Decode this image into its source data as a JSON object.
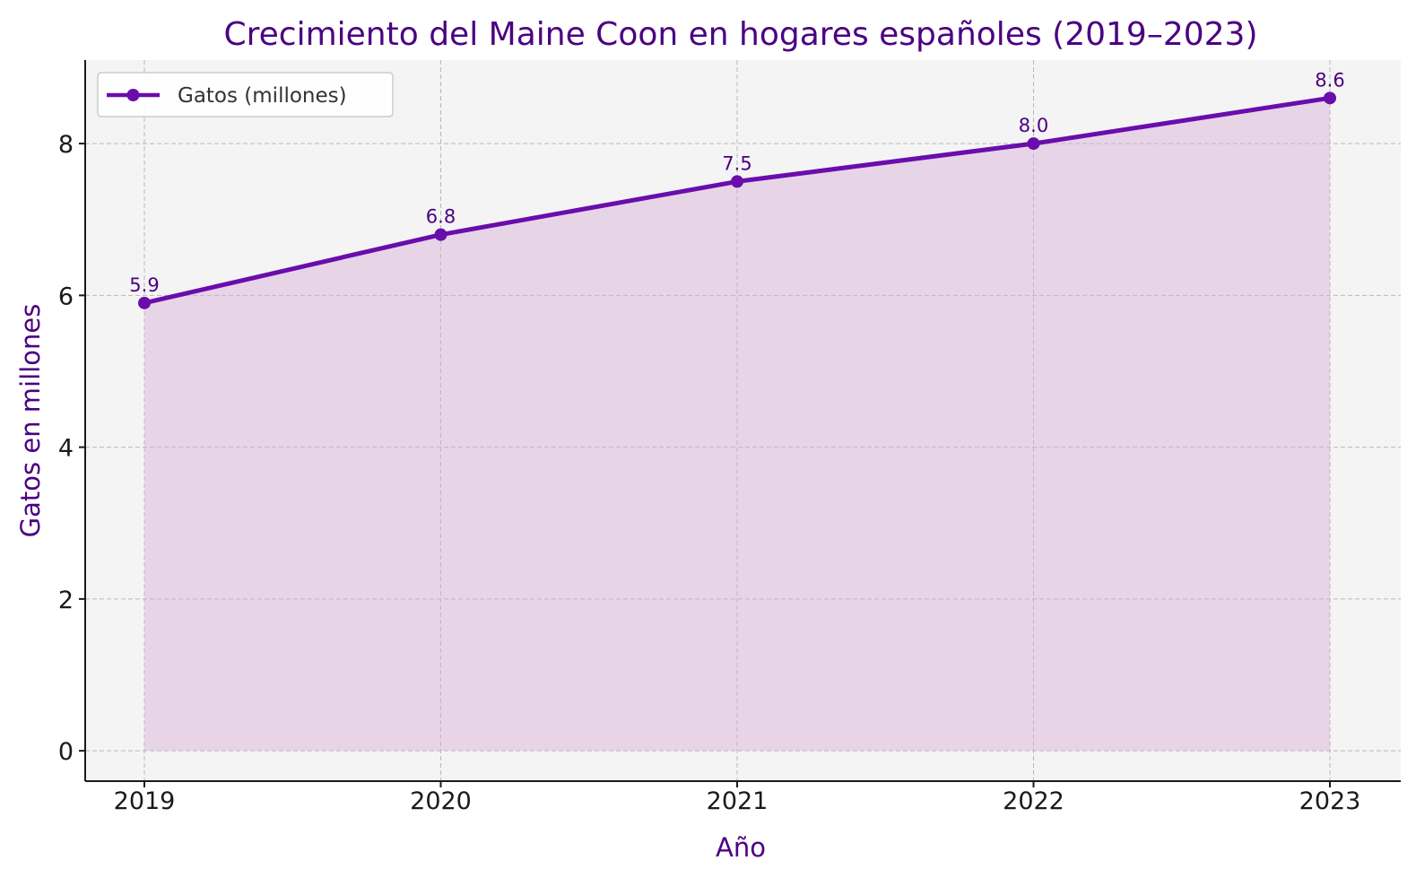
{
  "chart_data": {
    "type": "area",
    "title": "Crecimiento del Maine Coon en hogares españoles (2019–2023)",
    "xlabel": "Año",
    "ylabel": "Gatos en millones",
    "x": [
      "2019",
      "2020",
      "2021",
      "2022",
      "2023"
    ],
    "series": [
      {
        "name": "Gatos (millones)",
        "values": [
          5.9,
          6.8,
          7.5,
          8.0,
          8.6
        ],
        "value_labels": [
          "5.9",
          "6.8",
          "7.5",
          "8.0",
          "8.6"
        ]
      }
    ],
    "ylim": [
      -0.4,
      9.1
    ],
    "yticks": [
      0,
      2,
      4,
      6,
      8
    ],
    "ytick_labels": [
      "0",
      "2",
      "4",
      "6",
      "8"
    ],
    "grid": true,
    "legend_position": "top-left",
    "colors": {
      "line": "#6a0dad",
      "fill": "#d8b0d8",
      "plot_background": "#f4f4f4",
      "title": "#4b0082",
      "grid": "#b8b8b8"
    }
  }
}
